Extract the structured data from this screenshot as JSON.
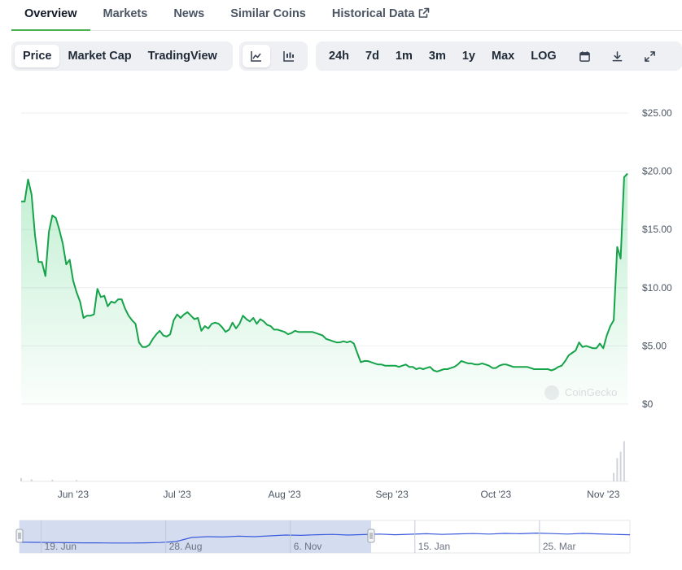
{
  "tabs": [
    {
      "label": "Overview",
      "active": true
    },
    {
      "label": "Markets",
      "active": false
    },
    {
      "label": "News",
      "active": false
    },
    {
      "label": "Similar Coins",
      "active": false
    },
    {
      "label": "Historical Data",
      "active": false,
      "external": true
    }
  ],
  "toolbar": {
    "chart_types": [
      {
        "label": "Price",
        "active": true
      },
      {
        "label": "Market Cap",
        "active": false
      },
      {
        "label": "TradingView",
        "active": false
      }
    ],
    "view_icons": [
      {
        "icon": "line-chart-icon",
        "active": true
      },
      {
        "icon": "candlestick-chart-icon",
        "active": false
      }
    ],
    "ranges": [
      "24h",
      "7d",
      "1m",
      "3m",
      "1y",
      "Max",
      "LOG"
    ],
    "action_icons": [
      "calendar-icon",
      "download-icon",
      "expand-icon"
    ]
  },
  "watermark": "CoinGecko",
  "colors": {
    "line": "#16a34a",
    "accent": "#4caf50",
    "navigator_fill": "#d4dcef"
  },
  "chart_data": {
    "type": "line",
    "ytick_labels": [
      "$25.00",
      "$20.00",
      "$15.00",
      "$10.00",
      "$5.00",
      "$0"
    ],
    "yticks": [
      25,
      20,
      15,
      10,
      5,
      0
    ],
    "ylim": [
      0,
      25
    ],
    "xtick_labels": [
      "Jun '23",
      "Jul '23",
      "Aug '23",
      "Sep '23",
      "Oct '23",
      "Nov '23"
    ],
    "xticks": [
      "2023-06-01",
      "2023-07-01",
      "2023-08-01",
      "2023-09-01",
      "2023-10-01",
      "2023-11-01"
    ],
    "xlim": [
      "2023-05-17",
      "2023-11-07"
    ],
    "grid": true,
    "series": [
      {
        "values": [
          [
            "2023-05-17",
            17.4
          ],
          [
            "2023-05-18",
            17.4
          ],
          [
            "2023-05-19",
            19.3
          ],
          [
            "2023-05-20",
            18.0
          ],
          [
            "2023-05-21",
            14.5
          ],
          [
            "2023-05-22",
            12.2
          ],
          [
            "2023-05-23",
            12.2
          ],
          [
            "2023-05-24",
            11.0
          ],
          [
            "2023-05-25",
            14.8
          ],
          [
            "2023-05-26",
            16.2
          ],
          [
            "2023-05-27",
            16.0
          ],
          [
            "2023-05-28",
            15.0
          ],
          [
            "2023-05-29",
            13.8
          ],
          [
            "2023-05-30",
            12.0
          ],
          [
            "2023-05-31",
            12.4
          ],
          [
            "2023-06-01",
            10.6
          ],
          [
            "2023-06-02",
            9.6
          ],
          [
            "2023-06-03",
            8.8
          ],
          [
            "2023-06-04",
            7.4
          ],
          [
            "2023-06-05",
            7.6
          ],
          [
            "2023-06-06",
            7.6
          ],
          [
            "2023-06-07",
            7.7
          ],
          [
            "2023-06-08",
            9.9
          ],
          [
            "2023-06-09",
            9.2
          ],
          [
            "2023-06-10",
            9.3
          ],
          [
            "2023-06-11",
            8.4
          ],
          [
            "2023-06-12",
            8.8
          ],
          [
            "2023-06-13",
            8.7
          ],
          [
            "2023-06-14",
            9.0
          ],
          [
            "2023-06-15",
            9.0
          ],
          [
            "2023-06-16",
            8.2
          ],
          [
            "2023-06-17",
            7.6
          ],
          [
            "2023-06-18",
            7.2
          ],
          [
            "2023-06-19",
            6.9
          ],
          [
            "2023-06-20",
            5.3
          ],
          [
            "2023-06-21",
            4.9
          ],
          [
            "2023-06-22",
            4.9
          ],
          [
            "2023-06-23",
            5.1
          ],
          [
            "2023-06-24",
            5.6
          ],
          [
            "2023-06-25",
            6.0
          ],
          [
            "2023-06-26",
            6.3
          ],
          [
            "2023-06-27",
            5.9
          ],
          [
            "2023-06-28",
            5.8
          ],
          [
            "2023-06-29",
            6.0
          ],
          [
            "2023-06-30",
            7.2
          ],
          [
            "2023-07-01",
            7.7
          ],
          [
            "2023-07-02",
            7.4
          ],
          [
            "2023-07-03",
            7.7
          ],
          [
            "2023-07-04",
            7.9
          ],
          [
            "2023-07-05",
            7.6
          ],
          [
            "2023-07-06",
            7.3
          ],
          [
            "2023-07-07",
            7.4
          ],
          [
            "2023-07-08",
            6.3
          ],
          [
            "2023-07-09",
            6.7
          ],
          [
            "2023-07-10",
            6.5
          ],
          [
            "2023-07-11",
            6.9
          ],
          [
            "2023-07-12",
            7.0
          ],
          [
            "2023-07-13",
            6.9
          ],
          [
            "2023-07-14",
            6.6
          ],
          [
            "2023-07-15",
            6.2
          ],
          [
            "2023-07-16",
            6.4
          ],
          [
            "2023-07-17",
            7.0
          ],
          [
            "2023-07-18",
            6.5
          ],
          [
            "2023-07-19",
            6.9
          ],
          [
            "2023-07-20",
            7.6
          ],
          [
            "2023-07-21",
            7.3
          ],
          [
            "2023-07-22",
            7.1
          ],
          [
            "2023-07-23",
            7.4
          ],
          [
            "2023-07-24",
            6.9
          ],
          [
            "2023-07-25",
            7.3
          ],
          [
            "2023-07-26",
            7.1
          ],
          [
            "2023-07-27",
            6.8
          ],
          [
            "2023-07-28",
            6.7
          ],
          [
            "2023-07-29",
            6.4
          ],
          [
            "2023-07-30",
            6.4
          ],
          [
            "2023-07-31",
            6.3
          ],
          [
            "2023-08-01",
            6.2
          ],
          [
            "2023-08-02",
            6.0
          ],
          [
            "2023-08-03",
            6.1
          ],
          [
            "2023-08-04",
            6.3
          ],
          [
            "2023-08-05",
            6.2
          ],
          [
            "2023-08-06",
            6.2
          ],
          [
            "2023-08-07",
            6.2
          ],
          [
            "2023-08-08",
            6.2
          ],
          [
            "2023-08-09",
            6.2
          ],
          [
            "2023-08-10",
            6.1
          ],
          [
            "2023-08-11",
            6.0
          ],
          [
            "2023-08-12",
            5.9
          ],
          [
            "2023-08-13",
            5.6
          ],
          [
            "2023-08-14",
            5.5
          ],
          [
            "2023-08-15",
            5.4
          ],
          [
            "2023-08-16",
            5.3
          ],
          [
            "2023-08-17",
            5.3
          ],
          [
            "2023-08-18",
            5.4
          ],
          [
            "2023-08-19",
            5.3
          ],
          [
            "2023-08-20",
            5.4
          ],
          [
            "2023-08-21",
            5.2
          ],
          [
            "2023-08-22",
            4.4
          ],
          [
            "2023-08-23",
            3.6
          ],
          [
            "2023-08-24",
            3.7
          ],
          [
            "2023-08-25",
            3.7
          ],
          [
            "2023-08-26",
            3.6
          ],
          [
            "2023-08-27",
            3.5
          ],
          [
            "2023-08-28",
            3.4
          ],
          [
            "2023-08-29",
            3.4
          ],
          [
            "2023-08-30",
            3.3
          ],
          [
            "2023-08-31",
            3.3
          ],
          [
            "2023-09-01",
            3.3
          ],
          [
            "2023-09-02",
            3.3
          ],
          [
            "2023-09-03",
            3.2
          ],
          [
            "2023-09-04",
            3.3
          ],
          [
            "2023-09-05",
            3.4
          ],
          [
            "2023-09-06",
            3.2
          ],
          [
            "2023-09-07",
            3.2
          ],
          [
            "2023-09-08",
            3.0
          ],
          [
            "2023-09-09",
            3.1
          ],
          [
            "2023-09-10",
            3.0
          ],
          [
            "2023-09-11",
            3.1
          ],
          [
            "2023-09-12",
            3.2
          ],
          [
            "2023-09-13",
            2.9
          ],
          [
            "2023-09-14",
            2.8
          ],
          [
            "2023-09-15",
            2.9
          ],
          [
            "2023-09-16",
            3.0
          ],
          [
            "2023-09-17",
            3.0
          ],
          [
            "2023-09-18",
            3.1
          ],
          [
            "2023-09-19",
            3.2
          ],
          [
            "2023-09-20",
            3.4
          ],
          [
            "2023-09-21",
            3.7
          ],
          [
            "2023-09-22",
            3.6
          ],
          [
            "2023-09-23",
            3.5
          ],
          [
            "2023-09-24",
            3.5
          ],
          [
            "2023-09-25",
            3.4
          ],
          [
            "2023-09-26",
            3.4
          ],
          [
            "2023-09-27",
            3.5
          ],
          [
            "2023-09-28",
            3.4
          ],
          [
            "2023-09-29",
            3.3
          ],
          [
            "2023-09-30",
            3.1
          ],
          [
            "2023-10-01",
            3.1
          ],
          [
            "2023-10-02",
            3.3
          ],
          [
            "2023-10-03",
            3.4
          ],
          [
            "2023-10-04",
            3.4
          ],
          [
            "2023-10-05",
            3.3
          ],
          [
            "2023-10-06",
            3.2
          ],
          [
            "2023-10-07",
            3.2
          ],
          [
            "2023-10-08",
            3.2
          ],
          [
            "2023-10-09",
            3.2
          ],
          [
            "2023-10-10",
            3.2
          ],
          [
            "2023-10-11",
            3.1
          ],
          [
            "2023-10-12",
            3.0
          ],
          [
            "2023-10-13",
            3.0
          ],
          [
            "2023-10-14",
            3.0
          ],
          [
            "2023-10-15",
            3.0
          ],
          [
            "2023-10-16",
            3.0
          ],
          [
            "2023-10-17",
            2.9
          ],
          [
            "2023-10-18",
            3.0
          ],
          [
            "2023-10-19",
            3.2
          ],
          [
            "2023-10-20",
            3.3
          ],
          [
            "2023-10-21",
            3.7
          ],
          [
            "2023-10-22",
            4.2
          ],
          [
            "2023-10-23",
            4.4
          ],
          [
            "2023-10-24",
            4.6
          ],
          [
            "2023-10-25",
            5.3
          ],
          [
            "2023-10-26",
            4.9
          ],
          [
            "2023-10-27",
            5.0
          ],
          [
            "2023-10-28",
            4.9
          ],
          [
            "2023-10-29",
            4.8
          ],
          [
            "2023-10-30",
            4.8
          ],
          [
            "2023-10-31",
            5.2
          ],
          [
            "2023-11-01",
            4.8
          ],
          [
            "2023-11-02",
            5.9
          ],
          [
            "2023-11-03",
            6.7
          ],
          [
            "2023-11-04",
            7.2
          ],
          [
            "2023-11-05",
            13.5
          ],
          [
            "2023-11-06",
            12.5
          ],
          [
            "2023-11-07",
            19.5
          ],
          [
            "2023-11-08",
            19.8
          ]
        ]
      }
    ],
    "volume": [
      [
        "2023-05-17",
        0.08
      ],
      [
        "2023-05-20",
        0.05
      ],
      [
        "2023-05-26",
        0.04
      ],
      [
        "2023-06-02",
        0.03
      ],
      [
        "2023-11-04",
        0.2
      ],
      [
        "2023-11-05",
        0.55
      ],
      [
        "2023-11-06",
        0.7
      ],
      [
        "2023-11-07",
        0.95
      ]
    ],
    "navigator": {
      "xtick_labels": [
        "19. Jun",
        "28. Aug",
        "6. Nov",
        "15. Jan",
        "25. Mar"
      ],
      "series": [
        0.26,
        0.25,
        0.24,
        0.23,
        0.22,
        0.22,
        0.21,
        0.21,
        0.22,
        0.24,
        0.3,
        0.55,
        0.6,
        0.58,
        0.63,
        0.6,
        0.65,
        0.7,
        0.68,
        0.72,
        0.74,
        0.7,
        0.73,
        0.76,
        0.72,
        0.75,
        0.78,
        0.74,
        0.77,
        0.79,
        0.76,
        0.8,
        0.78,
        0.82,
        0.79,
        0.76,
        0.8,
        0.77,
        0.74,
        0.72
      ]
    }
  }
}
